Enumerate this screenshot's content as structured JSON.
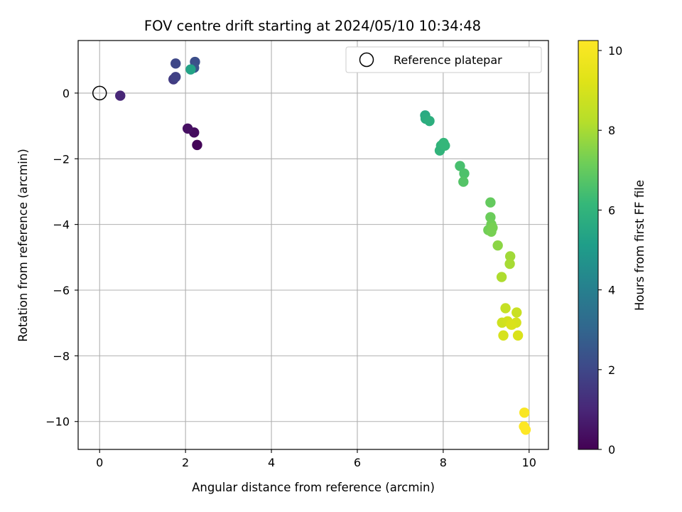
{
  "chart_data": {
    "type": "scatter",
    "title": "FOV centre drift starting at 2024/05/10 10:34:48",
    "xlabel": "Angular distance from reference (arcmin)",
    "ylabel": "Rotation from reference (arcmin)",
    "xlim": [
      -0.5,
      10.45
    ],
    "ylim": [
      -10.85,
      1.6
    ],
    "xticks": [
      0,
      2,
      4,
      6,
      8,
      10
    ],
    "yticks": [
      0,
      -2,
      -4,
      -6,
      -8,
      -10
    ],
    "xtick_labels": [
      "0",
      "2",
      "4",
      "6",
      "8",
      "10"
    ],
    "ytick_labels": [
      "0",
      "−2",
      "−4",
      "−6",
      "−8",
      "−10"
    ],
    "grid": true,
    "legend": {
      "placement": "top-right",
      "entries": [
        "Reference platepar"
      ]
    },
    "reference_point": {
      "x": 0,
      "y": 0
    },
    "colorbar": {
      "label": "Hours from first FF file",
      "range": [
        0,
        10.25
      ],
      "ticks": [
        0,
        2,
        4,
        6,
        8,
        10
      ],
      "tick_labels": [
        "0",
        "2",
        "4",
        "6",
        "8",
        "10"
      ],
      "colormap": "viridis"
    },
    "points": [
      {
        "x": 2.27,
        "y": -1.58,
        "t": 0.1
      },
      {
        "x": 2.2,
        "y": -1.2,
        "t": 0.3
      },
      {
        "x": 2.05,
        "y": -1.08,
        "t": 0.4
      },
      {
        "x": 0.48,
        "y": -0.08,
        "t": 1.0
      },
      {
        "x": 1.72,
        "y": 0.42,
        "t": 1.6
      },
      {
        "x": 1.77,
        "y": 0.49,
        "t": 1.8
      },
      {
        "x": 1.77,
        "y": 0.9,
        "t": 2.0
      },
      {
        "x": 2.22,
        "y": 0.95,
        "t": 2.2
      },
      {
        "x": 2.2,
        "y": 0.77,
        "t": 2.4
      },
      {
        "x": 2.12,
        "y": 0.72,
        "t": 5.3
      },
      {
        "x": 7.58,
        "y": -0.68,
        "t": 5.6
      },
      {
        "x": 7.59,
        "y": -0.78,
        "t": 5.7
      },
      {
        "x": 7.68,
        "y": -0.85,
        "t": 5.8
      },
      {
        "x": 7.92,
        "y": -1.75,
        "t": 6.0
      },
      {
        "x": 7.95,
        "y": -1.6,
        "t": 6.0
      },
      {
        "x": 8.01,
        "y": -1.52,
        "t": 6.1
      },
      {
        "x": 8.04,
        "y": -1.6,
        "t": 6.1
      },
      {
        "x": 8.39,
        "y": -2.22,
        "t": 6.5
      },
      {
        "x": 8.49,
        "y": -2.45,
        "t": 6.6
      },
      {
        "x": 8.47,
        "y": -2.7,
        "t": 6.7
      },
      {
        "x": 9.1,
        "y": -3.33,
        "t": 7.0
      },
      {
        "x": 9.1,
        "y": -3.78,
        "t": 7.1
      },
      {
        "x": 9.12,
        "y": -4.0,
        "t": 7.2
      },
      {
        "x": 9.05,
        "y": -4.17,
        "t": 7.2
      },
      {
        "x": 9.15,
        "y": -4.1,
        "t": 7.3
      },
      {
        "x": 9.12,
        "y": -4.22,
        "t": 7.3
      },
      {
        "x": 9.27,
        "y": -4.64,
        "t": 7.6
      },
      {
        "x": 9.56,
        "y": -4.97,
        "t": 7.9
      },
      {
        "x": 9.55,
        "y": -5.2,
        "t": 8.0
      },
      {
        "x": 9.36,
        "y": -5.6,
        "t": 8.1
      },
      {
        "x": 9.45,
        "y": -6.55,
        "t": 8.6
      },
      {
        "x": 9.71,
        "y": -6.68,
        "t": 8.7
      },
      {
        "x": 9.37,
        "y": -6.99,
        "t": 8.8
      },
      {
        "x": 9.5,
        "y": -6.95,
        "t": 8.9
      },
      {
        "x": 9.6,
        "y": -7.05,
        "t": 9.0
      },
      {
        "x": 9.7,
        "y": -6.99,
        "t": 9.0
      },
      {
        "x": 9.58,
        "y": -7.05,
        "t": 9.1
      },
      {
        "x": 9.4,
        "y": -7.38,
        "t": 9.0
      },
      {
        "x": 9.74,
        "y": -7.38,
        "t": 9.1
      },
      {
        "x": 9.89,
        "y": -9.73,
        "t": 10.1
      },
      {
        "x": 9.88,
        "y": -10.15,
        "t": 10.2
      },
      {
        "x": 9.92,
        "y": -10.25,
        "t": 10.25
      }
    ]
  }
}
